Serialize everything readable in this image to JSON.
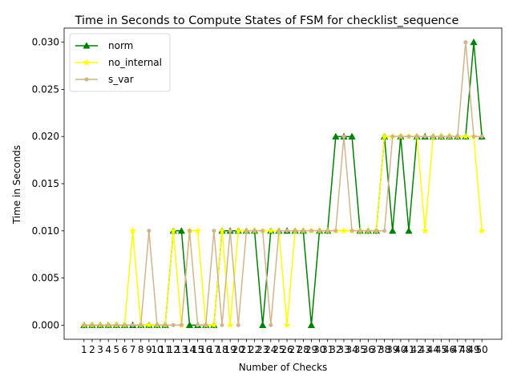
{
  "chart_data": {
    "type": "line",
    "title": "Time in Seconds to Compute States of FSM for checklist_sequence",
    "xlabel": "Number of Checks",
    "ylabel": "Time in Seconds",
    "x": [
      1,
      2,
      3,
      4,
      5,
      6,
      7,
      8,
      9,
      10,
      11,
      12,
      13,
      14,
      15,
      16,
      17,
      18,
      19,
      20,
      21,
      22,
      23,
      24,
      25,
      26,
      27,
      28,
      29,
      30,
      31,
      32,
      33,
      34,
      35,
      36,
      37,
      38,
      39,
      40,
      41,
      42,
      43,
      44,
      45,
      46,
      47,
      48,
      49,
      50
    ],
    "ylim": [
      -0.0015,
      0.0315
    ],
    "yticks": [
      0.0,
      0.005,
      0.01,
      0.015,
      0.02,
      0.025,
      0.03
    ],
    "ytick_labels": [
      "0.000",
      "0.005",
      "0.010",
      "0.015",
      "0.020",
      "0.025",
      "0.030"
    ],
    "legend_position": "top-left",
    "series": [
      {
        "name": "norm",
        "color": "#008000",
        "marker": "triangle",
        "values": [
          0,
          0,
          0,
          0,
          0,
          0,
          0,
          0,
          0,
          0,
          0,
          0.01,
          0.01,
          0,
          0,
          0,
          0,
          0.01,
          0.01,
          0.01,
          0.01,
          0.01,
          0,
          0.01,
          0.01,
          0.01,
          0.01,
          0.01,
          0,
          0.01,
          0.01,
          0.02,
          0.02,
          0.02,
          0.01,
          0.01,
          0.01,
          0.02,
          0.01,
          0.02,
          0.01,
          0.02,
          0.02,
          0.02,
          0.02,
          0.02,
          0.02,
          0.02,
          0.03,
          0.02
        ]
      },
      {
        "name": "no_internal",
        "color": "#ffff00",
        "marker": "star",
        "values": [
          0,
          0,
          0,
          0,
          0,
          0,
          0.01,
          0,
          0,
          0,
          0,
          0.01,
          0,
          0.01,
          0.01,
          0,
          0,
          0.01,
          0,
          0.01,
          0.01,
          0.01,
          0.01,
          0.01,
          0.01,
          0,
          0.01,
          0.01,
          0.01,
          0.01,
          0.01,
          0.01,
          0.01,
          0.01,
          0.01,
          0.01,
          0.01,
          0.02,
          0.02,
          0.02,
          0.02,
          0.02,
          0.01,
          0.02,
          0.02,
          0.02,
          0.02,
          0.02,
          0.02,
          0.01
        ]
      },
      {
        "name": "s_var",
        "color": "#d2b48c",
        "marker": "circle",
        "values": [
          0,
          0,
          0,
          0,
          0,
          0,
          0,
          0,
          0.01,
          0,
          0,
          0,
          0,
          0.01,
          0,
          0,
          0.01,
          0,
          0.01,
          0,
          0.01,
          0.01,
          0.01,
          0,
          0.01,
          0.01,
          0.01,
          0.01,
          0.01,
          0.01,
          0.01,
          0.01,
          0.02,
          0.01,
          0.01,
          0.01,
          0.01,
          0.01,
          0.02,
          0.02,
          0.02,
          0.02,
          0.02,
          0.02,
          0.02,
          0.02,
          0.02,
          0.03,
          0.02,
          0.02
        ]
      }
    ]
  }
}
